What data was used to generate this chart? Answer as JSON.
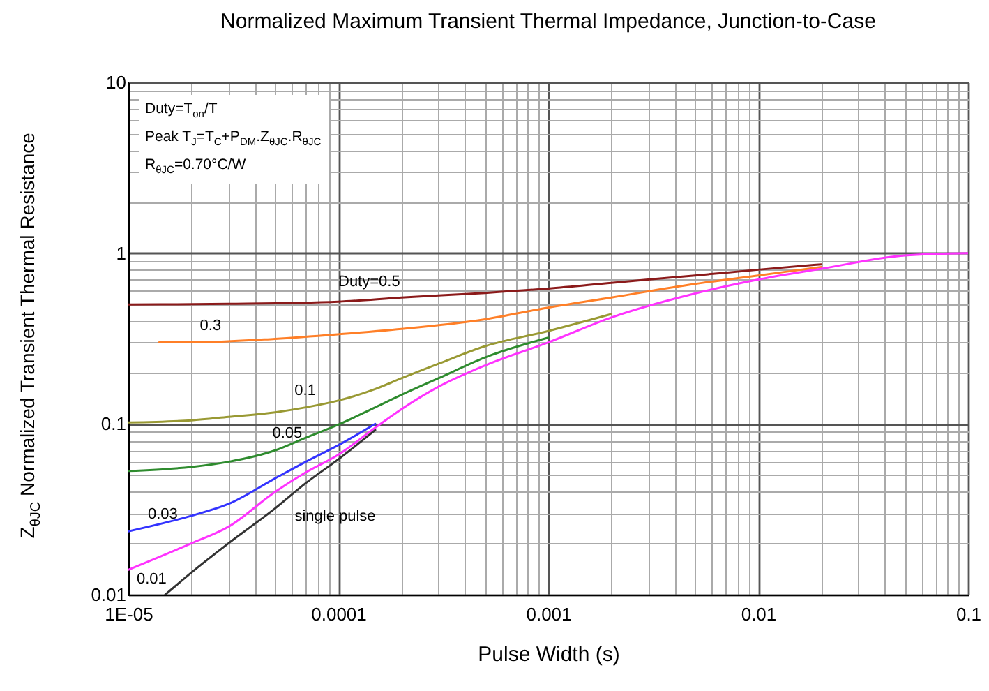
{
  "chart_data": {
    "type": "line",
    "title": "Normalized Maximum Transient Thermal Impedance, Junction-to-Case",
    "xlabel": "Pulse Width (s)",
    "ylabel": "Z$_{θJC}$ Normalized Transient Thermal Resistance",
    "log": "xy",
    "grid": true,
    "legend": false,
    "marker": "none",
    "line_style": "solid",
    "xlim": [
      1e-05,
      0.1
    ],
    "ylim": [
      0.01,
      10
    ],
    "xticks": [
      {
        "value": 1e-05,
        "label": "1E-05"
      },
      {
        "value": 2e-05,
        "label": null
      },
      {
        "value": 3e-05,
        "label": null
      },
      {
        "value": 4e-05,
        "label": null
      },
      {
        "value": 5e-05,
        "label": null
      },
      {
        "value": 6e-05,
        "label": null
      },
      {
        "value": 7e-05,
        "label": null
      },
      {
        "value": 8e-05,
        "label": null
      },
      {
        "value": 9e-05,
        "label": null
      },
      0.0001,
      {
        "value": 0.0002,
        "label": null
      },
      {
        "value": 0.0003,
        "label": null
      },
      {
        "value": 0.0004,
        "label": null
      },
      {
        "value": 0.0005,
        "label": null
      },
      {
        "value": 0.0006,
        "label": null
      },
      {
        "value": 0.0007,
        "label": null
      },
      {
        "value": 0.0008,
        "label": null
      },
      {
        "value": 0.0009,
        "label": null
      },
      0.001,
      {
        "value": 0.002,
        "label": null
      },
      {
        "value": 0.003,
        "label": null
      },
      {
        "value": 0.004,
        "label": null
      },
      {
        "value": 0.005,
        "label": null
      },
      {
        "value": 0.006,
        "label": null
      },
      {
        "value": 0.007,
        "label": null
      },
      {
        "value": 0.008,
        "label": null
      },
      {
        "value": 0.009,
        "label": null
      },
      0.01,
      {
        "value": 0.02,
        "label": null
      },
      {
        "value": 0.03,
        "label": null
      },
      {
        "value": 0.04,
        "label": null
      },
      {
        "value": 0.05,
        "label": null
      },
      {
        "value": 0.06,
        "label": null
      },
      {
        "value": 0.07,
        "label": null
      },
      {
        "value": 0.08,
        "label": null
      },
      {
        "value": 0.09,
        "label": null
      },
      0.1
    ],
    "yticks": [
      0.01,
      {
        "value": 0.02,
        "label": null
      },
      {
        "value": 0.03,
        "label": null
      },
      {
        "value": 0.04,
        "label": null
      },
      {
        "value": 0.05,
        "label": null
      },
      {
        "value": 0.06,
        "label": null
      },
      {
        "value": 0.07,
        "label": null
      },
      {
        "value": 0.08,
        "label": null
      },
      {
        "value": 0.09,
        "label": null
      },
      0.1,
      {
        "value": 0.2,
        "label": null
      },
      {
        "value": 0.3,
        "label": null
      },
      {
        "value": 0.4,
        "label": null
      },
      {
        "value": 0.5,
        "label": null
      },
      {
        "value": 0.6,
        "label": null
      },
      {
        "value": 0.7,
        "label": null
      },
      {
        "value": 0.8,
        "label": null
      },
      {
        "value": 0.9,
        "label": null
      },
      1,
      {
        "value": 2,
        "label": null
      },
      {
        "value": 3,
        "label": null
      },
      {
        "value": 4,
        "label": null
      },
      {
        "value": 5,
        "label": null
      },
      {
        "value": 6,
        "label": null
      },
      {
        "value": 7,
        "label": null
      },
      {
        "value": 8,
        "label": null
      },
      {
        "value": 9,
        "label": null
      },
      10
    ],
    "annotations": [
      "Duty=T$_{on}$/T",
      "Peak T$_{J}$=T$_{C}$+P$_{DM}$.Z$_{θJC}$.R$_{θJC}$",
      "R$_{θJC}$=0.70°C/W"
    ],
    "series": [
      {
        "name": "Duty=0.5",
        "color": "#8b1a1a",
        "x": [
          1e-05,
          3e-05,
          0.0001,
          0.0002,
          0.0005,
          0.001,
          0.002,
          0.005,
          0.01,
          0.02
        ],
        "values": [
          0.5,
          0.505,
          0.52,
          0.55,
          0.585,
          0.62,
          0.67,
          0.74,
          0.8,
          0.86
        ]
      },
      {
        "name": "0.3",
        "color": "#ff7f27",
        "x": [
          1.4e-05,
          2e-05,
          5e-05,
          0.0001,
          0.0002,
          0.0005,
          0.001,
          0.002,
          0.005,
          0.01,
          0.02
        ],
        "values": [
          0.3,
          0.3,
          0.315,
          0.335,
          0.36,
          0.41,
          0.48,
          0.55,
          0.66,
          0.74,
          0.83
        ]
      },
      {
        "name": "0.1",
        "color": "#999933",
        "x": [
          1e-05,
          2e-05,
          3e-05,
          5e-05,
          7e-05,
          0.0001,
          0.00015,
          0.0002,
          0.0003,
          0.0005,
          0.001,
          0.002
        ],
        "values": [
          0.102,
          0.105,
          0.11,
          0.117,
          0.125,
          0.137,
          0.16,
          0.185,
          0.225,
          0.285,
          0.35,
          0.44
        ]
      },
      {
        "name": "0.05",
        "color": "#2e8b2e",
        "x": [
          1e-05,
          2e-05,
          3e-05,
          5e-05,
          7e-05,
          0.0001,
          0.00015,
          0.0002,
          0.0003,
          0.0005,
          0.001
        ],
        "values": [
          0.053,
          0.056,
          0.06,
          0.07,
          0.083,
          0.099,
          0.125,
          0.148,
          0.185,
          0.245,
          0.32
        ]
      },
      {
        "name": "0.03",
        "color": "#3333ff",
        "x": [
          1e-05,
          2e-05,
          3e-05,
          5e-05,
          7e-05,
          0.0001,
          0.00015
        ],
        "values": [
          0.0235,
          0.029,
          0.034,
          0.048,
          0.06,
          0.075,
          0.1
        ]
      },
      {
        "name": "0.01",
        "color": "#ff33ff",
        "x": [
          1e-05,
          2e-05,
          3e-05,
          5e-05,
          7e-05,
          0.0001,
          0.00015,
          0.0002,
          0.0003,
          0.0005,
          0.001,
          0.002,
          0.005,
          0.01,
          0.02,
          0.05,
          0.1
        ],
        "values": [
          0.014,
          0.02,
          0.025,
          0.04,
          0.052,
          0.066,
          0.095,
          0.122,
          0.165,
          0.22,
          0.3,
          0.42,
          0.58,
          0.7,
          0.81,
          0.97,
          1.0
        ]
      },
      {
        "name": "single pulse",
        "color": "#333333",
        "x": [
          1.5e-05,
          2e-05,
          3e-05,
          5e-05,
          7e-05,
          0.0001,
          0.00015
        ],
        "values": [
          0.01,
          0.0135,
          0.02,
          0.032,
          0.045,
          0.062,
          0.092
        ]
      }
    ]
  }
}
